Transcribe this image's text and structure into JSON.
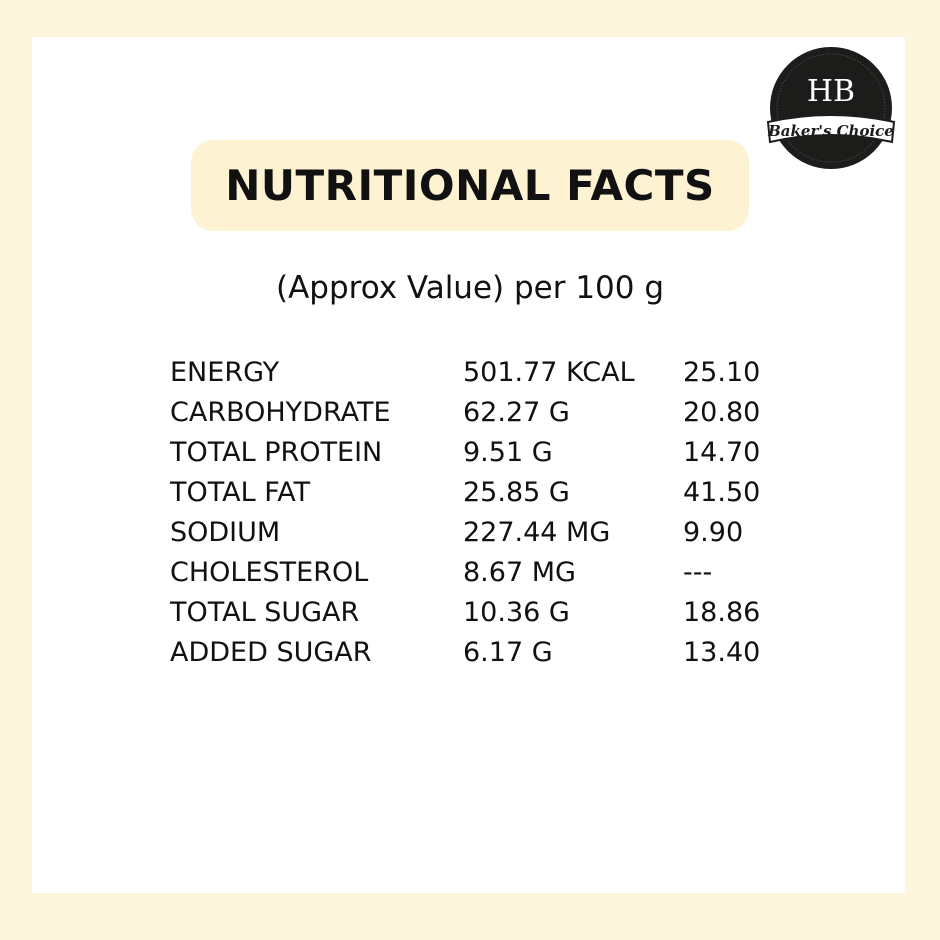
{
  "logo": {
    "mark": "HB",
    "name": "Baker's Choice"
  },
  "header": {
    "title": "NUTRITIONAL FACTS",
    "subtitle": "(Approx Value) per 100 g"
  },
  "table": {
    "rows": [
      [
        "ENERGY",
        "501.77 KCAL",
        "25.10"
      ],
      [
        "CARBOHYDRATE",
        "62.27 G",
        "20.80"
      ],
      [
        "TOTAL PROTEIN",
        "9.51 G",
        "14.70"
      ],
      [
        "TOTAL FAT",
        "25.85 G",
        "41.50"
      ],
      [
        "SODIUM",
        "227.44 MG",
        "9.90"
      ],
      [
        "CHOLESTEROL",
        "8.67 MG",
        "---"
      ],
      [
        "TOTAL SUGAR",
        "10.36 G",
        "18.86"
      ],
      [
        "ADDED SUGAR",
        "6.17 G",
        "13.40"
      ]
    ]
  }
}
